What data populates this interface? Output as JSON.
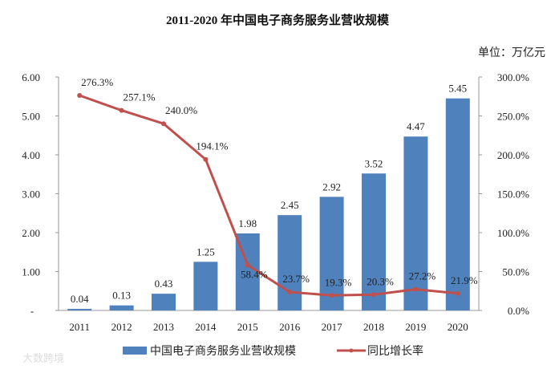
{
  "chart_data": {
    "type": "bar+line",
    "title": "2011-2020 年中国电子商务服务业营收规模",
    "unit_label": "单位：万亿元",
    "categories": [
      "2011",
      "2012",
      "2013",
      "2014",
      "2015",
      "2016",
      "2017",
      "2018",
      "2019",
      "2020"
    ],
    "series": [
      {
        "name": "中国电子商务服务业营收规模",
        "type": "bar",
        "axis": "left",
        "color": "#4f81bd",
        "values": [
          0.04,
          0.13,
          0.43,
          1.25,
          1.98,
          2.45,
          2.92,
          3.52,
          4.47,
          5.45
        ],
        "labels": [
          "0.04",
          "0.13",
          "0.43",
          "1.25",
          "1.98",
          "2.45",
          "2.92",
          "3.52",
          "4.47",
          "5.45"
        ]
      },
      {
        "name": "同比增长率",
        "type": "line",
        "axis": "right",
        "color": "#c0504d",
        "values": [
          276.3,
          257.1,
          240.0,
          194.1,
          58.4,
          23.7,
          19.3,
          20.3,
          27.2,
          21.9
        ],
        "labels": [
          "276.3%",
          "257.1%",
          "240.0%",
          "194.1%",
          "58.4%",
          "23.7%",
          "19.3%",
          "20.3%",
          "27.2%",
          "21.9%"
        ]
      }
    ],
    "left_axis": {
      "ylim": [
        0,
        6
      ],
      "ticks": [
        "-",
        "1.00",
        "2.00",
        "3.00",
        "4.00",
        "5.00",
        "6.00"
      ]
    },
    "right_axis": {
      "ylim": [
        0,
        300
      ],
      "ticks": [
        "0.0%",
        "50.0%",
        "100.0%",
        "150.0%",
        "200.0%",
        "250.0%",
        "300.0%"
      ]
    },
    "grid": false,
    "legend": "bottom"
  },
  "watermark": "大数跨境"
}
